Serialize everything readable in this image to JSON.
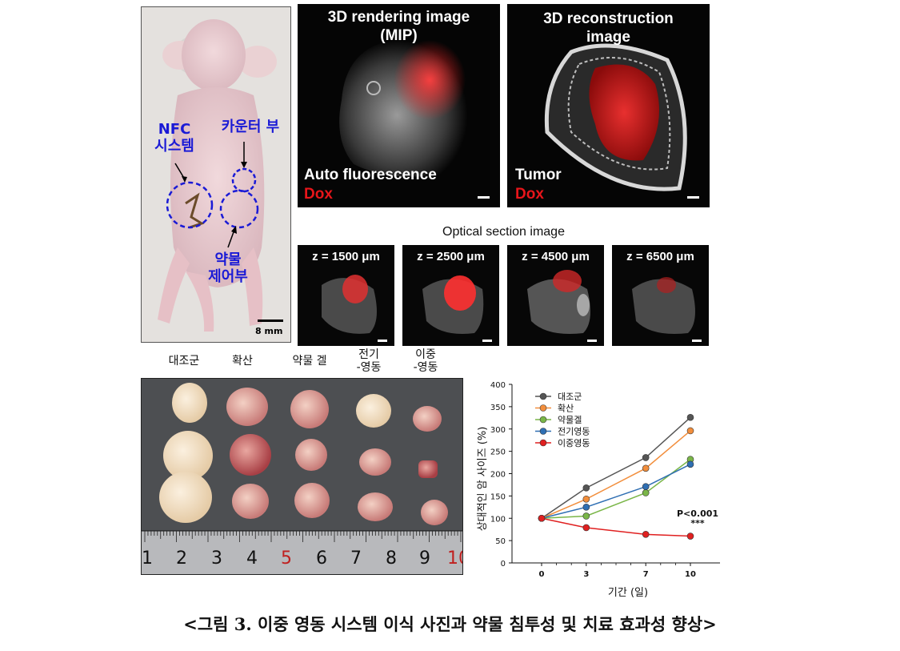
{
  "mouse_panel": {
    "labels": {
      "nfc": "NFC\n시스템",
      "counter": "카운터 부",
      "drug_control": "약물\n제어부"
    },
    "scale": "8 mm"
  },
  "rendering_panel": {
    "title": "3D rendering image\n(MIP)",
    "legend_1": "Auto fluorescence",
    "legend_2": "Dox"
  },
  "reconstruction_panel": {
    "title": "3D reconstruction\nimage",
    "legend_1": "Tumor",
    "legend_2": "Dox"
  },
  "optical_section": {
    "title": "Optical section image",
    "panels": [
      "z = 1500 μm",
      "z = 2500 μm",
      "z = 4500 μm",
      "z = 6500 μm"
    ]
  },
  "tumor_photo": {
    "groups": [
      "대조군",
      "확산",
      "약물 겔",
      "전기\n-영동",
      "이중\n-영동"
    ],
    "ruler_numbers": [
      "1",
      "2",
      "3",
      "4",
      "5",
      "6",
      "7",
      "8",
      "9",
      "10"
    ]
  },
  "chart_data": {
    "type": "line",
    "x": [
      0,
      3,
      7,
      10
    ],
    "xlabel": "기간 (일)",
    "ylabel": "상대적인 암 사이즈 (%)",
    "ylim": [
      0,
      400
    ],
    "yticks": [
      0,
      50,
      100,
      150,
      200,
      250,
      300,
      350,
      400
    ],
    "legend_position": "top-left",
    "series": [
      {
        "name": "대조군",
        "color": "#555555",
        "values": [
          100,
          168,
          236,
          326
        ]
      },
      {
        "name": "확산",
        "color": "#f28e3c",
        "values": [
          100,
          143,
          212,
          296
        ]
      },
      {
        "name": "약물겔",
        "color": "#7ab648",
        "values": [
          100,
          105,
          157,
          232
        ]
      },
      {
        "name": "전기영동",
        "color": "#2f6fb3",
        "values": [
          100,
          125,
          171,
          221
        ]
      },
      {
        "name": "이중영동",
        "color": "#e02020",
        "values": [
          100,
          79,
          64,
          60
        ]
      }
    ],
    "annotation": {
      "text": "P<0.001",
      "stars": "***"
    }
  },
  "caption": "<그림 3. 이중 영동 시스템 이식 사진과 약물 침투성 및 치료 효과성 향상>"
}
